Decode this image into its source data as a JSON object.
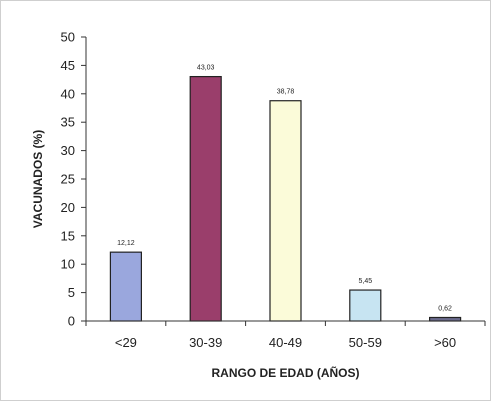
{
  "chart_data": {
    "type": "bar",
    "title": "",
    "xlabel": "RANGO DE EDAD (AÑOS)",
    "ylabel": "VACUNADOS (%)",
    "ylim": [
      0,
      50
    ],
    "yticks": [
      0,
      5,
      10,
      15,
      20,
      25,
      30,
      35,
      40,
      45,
      50
    ],
    "grid": false,
    "legend": "none",
    "categories": [
      "<29",
      "30-39",
      "40-49",
      "50-59",
      ">60"
    ],
    "values": [
      12.12,
      43.03,
      38.78,
      5.45,
      0.62
    ],
    "data_labels": [
      "12,12",
      "43,03",
      "38,78",
      "5,45",
      "0,62"
    ],
    "bar_colors": [
      "#9aa7dd",
      "#9a3e6b",
      "#fbfbd9",
      "#c7e4f2",
      "#6a6a8c"
    ]
  }
}
